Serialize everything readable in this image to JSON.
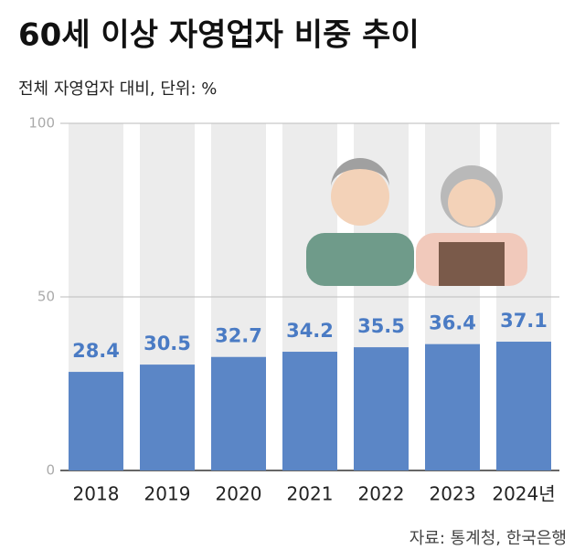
{
  "chart_data": {
    "type": "bar",
    "title": "60세 이상 자영업자 비중 추이",
    "subtitle": "전체 자영업자 대비, 단위: %",
    "source": "자료: 통계청, 한국은행",
    "categories": [
      "2018",
      "2019",
      "2020",
      "2021",
      "2022",
      "2023",
      "2024년"
    ],
    "values": [
      28.4,
      30.5,
      32.7,
      34.2,
      35.5,
      36.4,
      37.1
    ],
    "color": "#5b86c6",
    "ylim": [
      0,
      100
    ],
    "yticks": [
      0,
      50,
      100
    ],
    "grid": true
  }
}
